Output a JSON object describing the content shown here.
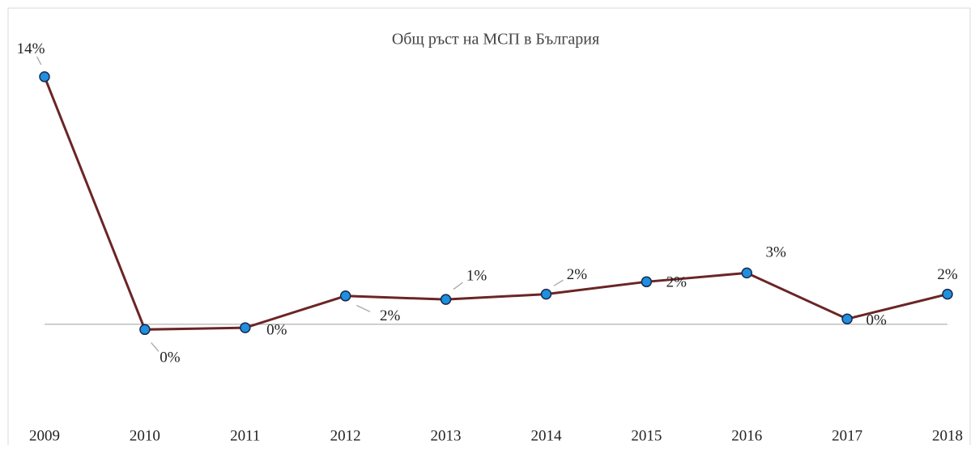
{
  "chart_data": {
    "type": "line",
    "title": "Общ ръст на МСП в България",
    "categories": [
      "2009",
      "2010",
      "2011",
      "2012",
      "2013",
      "2014",
      "2015",
      "2016",
      "2017",
      "2018"
    ],
    "series": [
      {
        "name": "Общ ръст на МСП",
        "color": "#6b2526",
        "values": [
          14,
          -0.3,
          -0.2,
          1.6,
          1.4,
          1.7,
          2.4,
          2.9,
          0.3,
          1.7
        ],
        "value_labels": [
          "14%",
          "0%",
          "0%",
          "2%",
          "1%",
          "2%",
          "2%",
          "3%",
          "0%",
          "2%"
        ]
      }
    ],
    "ylim": [
      -5,
      15
    ]
  }
}
